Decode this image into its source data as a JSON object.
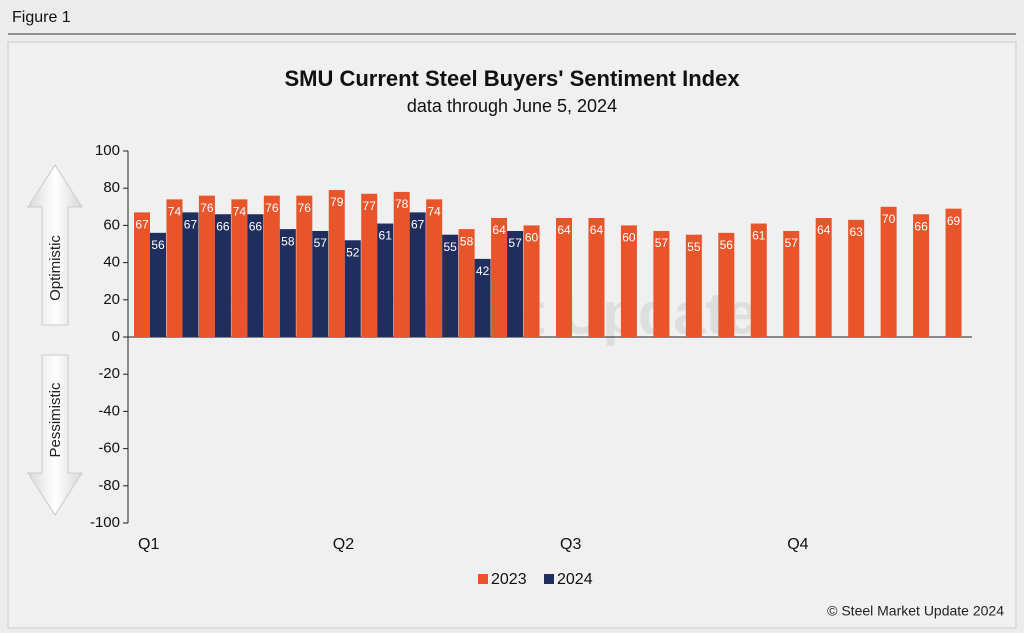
{
  "figure_label": "Figure 1",
  "chart_data": {
    "type": "bar",
    "title": "SMU Current Steel Buyers' Sentiment Index",
    "subtitle": "data through June 5, 2024",
    "upper_label": "Optimistic",
    "lower_label": "Pessimistic",
    "watermark": "Steel Market Update",
    "categories": [
      "Q1",
      null,
      null,
      null,
      null,
      null,
      "Q2",
      null,
      null,
      null,
      null,
      null,
      null,
      "Q3",
      null,
      null,
      null,
      null,
      null,
      null,
      "Q4",
      null,
      null,
      null,
      null,
      null
    ],
    "series": [
      {
        "name": "2023",
        "color": "#e8552b",
        "values": [
          67,
          74,
          76,
          74,
          76,
          76,
          79,
          77,
          78,
          74,
          58,
          64,
          60,
          64,
          64,
          60,
          57,
          55,
          56,
          61,
          57,
          64,
          63,
          70,
          66,
          69
        ]
      },
      {
        "name": "2024",
        "color": "#1f2e5c",
        "values": [
          56,
          67,
          66,
          66,
          58,
          57,
          52,
          61,
          67,
          55,
          42,
          57,
          null,
          null,
          null,
          null,
          null,
          null,
          null,
          null,
          null,
          null,
          null,
          null,
          null,
          null
        ]
      }
    ],
    "ylim": [
      -100,
      100
    ],
    "yticks": [
      -100,
      -80,
      -60,
      -40,
      -20,
      0,
      20,
      40,
      60,
      80,
      100
    ],
    "legend": "bottom",
    "source": "© Steel Market Update 2024"
  }
}
